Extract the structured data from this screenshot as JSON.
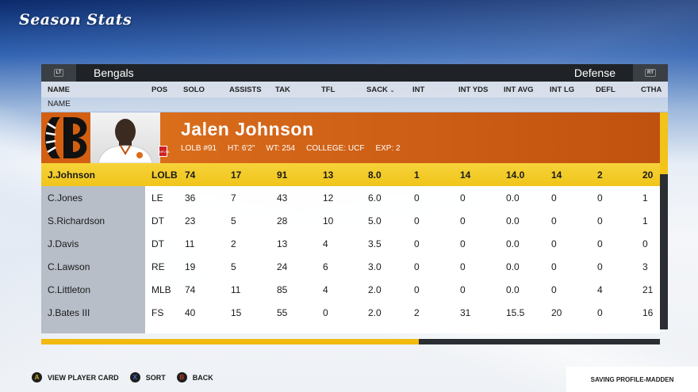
{
  "screen": {
    "title": "Season Stats"
  },
  "header": {
    "left_bumper": "LT",
    "right_bumper": "RT",
    "team": "Bengals",
    "side": "Defense"
  },
  "columns": [
    "NAME",
    "POS",
    "SOLO",
    "ASSISTS",
    "TAK",
    "TFL",
    "SACK",
    "INT",
    "INT YDS",
    "INT AVG",
    "INT LG",
    "DEFL",
    "CTHA"
  ],
  "subheader": "NAME",
  "player_card": {
    "name": "Jalen Johnson",
    "position_number": "LOLB #91",
    "height": "HT: 6'2\"",
    "weight": "WT: 254",
    "college": "COLLEGE: UCF",
    "experience": "EXP: 2",
    "nflpa_badge": "NFLPA"
  },
  "rows": [
    {
      "cells": [
        "J.Johnson",
        "LOLB",
        "74",
        "17",
        "91",
        "13",
        "8.0",
        "1",
        "14",
        "14.0",
        "14",
        "2",
        "20"
      ]
    },
    {
      "cells": [
        "C.Jones",
        "LE",
        "36",
        "7",
        "43",
        "12",
        "6.0",
        "0",
        "0",
        "0.0",
        "0",
        "0",
        "1"
      ]
    },
    {
      "cells": [
        "S.Richardson",
        "DT",
        "23",
        "5",
        "28",
        "10",
        "5.0",
        "0",
        "0",
        "0.0",
        "0",
        "0",
        "1"
      ]
    },
    {
      "cells": [
        "J.Davis",
        "DT",
        "11",
        "2",
        "13",
        "4",
        "3.5",
        "0",
        "0",
        "0.0",
        "0",
        "0",
        "0"
      ]
    },
    {
      "cells": [
        "C.Lawson",
        "RE",
        "19",
        "5",
        "24",
        "6",
        "3.0",
        "0",
        "0",
        "0.0",
        "0",
        "0",
        "3"
      ]
    },
    {
      "cells": [
        "C.Littleton",
        "MLB",
        "74",
        "11",
        "85",
        "4",
        "2.0",
        "0",
        "0",
        "0.0",
        "0",
        "4",
        "21"
      ]
    },
    {
      "cells": [
        "J.Bates III",
        "FS",
        "40",
        "15",
        "55",
        "0",
        "2.0",
        "2",
        "31",
        "15.5",
        "20",
        "0",
        "16"
      ]
    }
  ],
  "scroll_progress": 0.61,
  "footer": {
    "a_key": "A",
    "a_label": "VIEW PLAYER CARD",
    "x_key": "X",
    "x_label": "SORT",
    "b_key": "B",
    "b_label": "BACK",
    "status": "SAVING PROFILE-MADDEN"
  },
  "colors": {
    "card_orange": "#d6681a",
    "selected_row": "#f0c51a",
    "a_button": "#c9b21a",
    "x_button": "#3a6fd0",
    "b_button": "#c0392b"
  }
}
